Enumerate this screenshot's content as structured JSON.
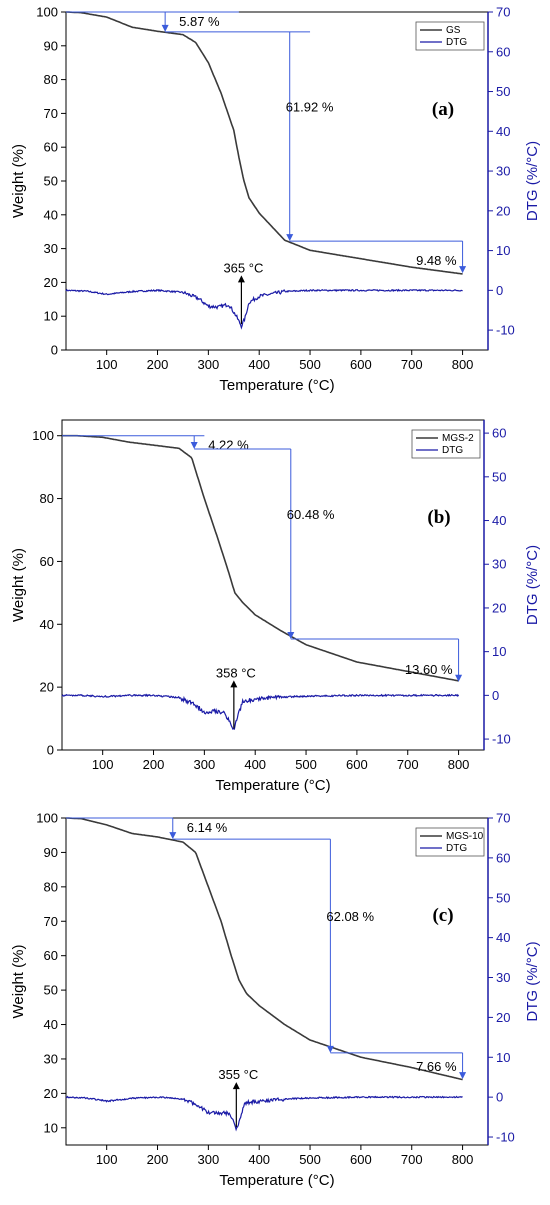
{
  "chart_data": [
    {
      "type": "line",
      "panel_label": "(a)",
      "xlabel": "Temperature (°C)",
      "ylabel": "Weight (%)",
      "y2label": "DTG (%/°C)",
      "xlim": [
        20,
        850
      ],
      "ylim": [
        0,
        100
      ],
      "y2lim": [
        -15,
        70
      ],
      "xticks": [
        100,
        200,
        300,
        400,
        500,
        600,
        700,
        800
      ],
      "yticks": [
        0,
        10,
        20,
        30,
        40,
        50,
        60,
        70,
        80,
        90,
        100
      ],
      "y2ticks": [
        -10,
        0,
        10,
        20,
        30,
        40,
        50,
        60,
        70
      ],
      "legend": [
        "GS",
        "DTG"
      ],
      "colors": {
        "weight": "#3a3a3a",
        "dtg": "#1a1aa6",
        "steps": "#3b5bdb"
      },
      "series": [
        {
          "name": "GS",
          "axis": "left",
          "x": [
            20,
            50,
            100,
            150,
            200,
            250,
            275,
            300,
            325,
            350,
            360,
            370,
            380,
            400,
            450,
            500,
            600,
            700,
            800
          ],
          "values": [
            100,
            99.8,
            98.5,
            95.5,
            94.3,
            93.3,
            91,
            85,
            76,
            65,
            57,
            50,
            45,
            40.5,
            32.5,
            29.5,
            27,
            24.5,
            22.5
          ]
        },
        {
          "name": "DTG",
          "axis": "right",
          "x": [
            20,
            60,
            100,
            150,
            200,
            250,
            280,
            300,
            320,
            340,
            355,
            365,
            372,
            380,
            400,
            450,
            500,
            600,
            700,
            800
          ],
          "values": [
            0,
            -0.2,
            -1,
            -0.3,
            0,
            -0.5,
            -2,
            -4,
            -4.2,
            -3.5,
            -6.5,
            -9,
            -7,
            -3,
            -1.5,
            -0.3,
            0,
            0,
            0,
            0
          ]
        }
      ],
      "steps": [
        {
          "label": "5.87 %",
          "x": 215,
          "y_top": 100,
          "y_bottom": 94.13,
          "line_end": 360
        },
        {
          "label": "61.92 %",
          "x": 460,
          "y_top": 94.13,
          "y_bottom": 32.21,
          "line_end": 500
        },
        {
          "label": "9.48 %",
          "x": 800,
          "y_top": 32.21,
          "y_bottom": 22.73,
          "line_end": 800
        }
      ],
      "peak": {
        "label": "365 °C",
        "x": 365
      }
    },
    {
      "type": "line",
      "panel_label": "(b)",
      "xlabel": "Temperature (°C)",
      "ylabel": "Weight (%)",
      "y2label": "DTG (%/°C)",
      "xlim": [
        20,
        850
      ],
      "ylim": [
        0,
        105
      ],
      "y2lim": [
        -12.5,
        63
      ],
      "xticks": [
        100,
        200,
        300,
        400,
        500,
        600,
        700,
        800
      ],
      "yticks": [
        0,
        20,
        40,
        60,
        80,
        100
      ],
      "y2ticks": [
        -10,
        0,
        10,
        20,
        30,
        40,
        50,
        60
      ],
      "legend": [
        "MGS-2",
        "DTG"
      ],
      "colors": {
        "weight": "#3a3a3a",
        "dtg": "#1a1aa6",
        "steps": "#3b5bdb"
      },
      "series": [
        {
          "name": "MGS-2",
          "axis": "left",
          "x": [
            20,
            50,
            100,
            150,
            200,
            250,
            275,
            300,
            325,
            345,
            360,
            375,
            400,
            450,
            500,
            600,
            700,
            800
          ],
          "values": [
            100,
            100,
            99.5,
            98,
            97,
            96,
            93,
            80,
            68,
            58,
            50,
            47,
            43,
            38,
            33.5,
            28,
            25,
            22
          ]
        },
        {
          "name": "DTG",
          "axis": "right",
          "x": [
            20,
            60,
            100,
            150,
            200,
            250,
            280,
            300,
            320,
            340,
            352,
            358,
            365,
            375,
            400,
            450,
            500,
            600,
            700,
            800
          ],
          "values": [
            0,
            0,
            -0.3,
            0,
            0,
            -0.5,
            -2,
            -3.8,
            -3.5,
            -4,
            -6.5,
            -8,
            -5,
            -1.5,
            -0.8,
            -0.4,
            -0.2,
            0,
            0,
            0
          ]
        }
      ],
      "steps": [
        {
          "label": "4.22 %",
          "x": 280,
          "y_top": 100,
          "y_bottom": 95.78,
          "line_end": 300
        },
        {
          "label": "60.48 %",
          "x": 470,
          "y_top": 95.78,
          "y_bottom": 35.3,
          "line_end": 470
        },
        {
          "label": "13.60 %",
          "x": 800,
          "y_top": 35.3,
          "y_bottom": 21.7,
          "line_end": 800
        }
      ],
      "peak": {
        "label": "358 °C",
        "x": 358
      }
    },
    {
      "type": "line",
      "panel_label": "(c)",
      "xlabel": "Temperature (°C)",
      "ylabel": "Weight (%)",
      "y2label": "DTG (%/°C)",
      "xlim": [
        20,
        850
      ],
      "ylim": [
        5,
        100
      ],
      "y2lim": [
        -12,
        70
      ],
      "xticks": [
        100,
        200,
        300,
        400,
        500,
        600,
        700,
        800
      ],
      "yticks": [
        10,
        20,
        30,
        40,
        50,
        60,
        70,
        80,
        90,
        100
      ],
      "y2ticks": [
        -10,
        0,
        10,
        20,
        30,
        40,
        50,
        60,
        70
      ],
      "legend": [
        "MGS-10",
        "DTG"
      ],
      "colors": {
        "weight": "#3a3a3a",
        "dtg": "#1a1aa6",
        "steps": "#3b5bdb"
      },
      "series": [
        {
          "name": "MGS-10",
          "axis": "left",
          "x": [
            20,
            50,
            100,
            150,
            200,
            250,
            275,
            300,
            325,
            345,
            360,
            375,
            400,
            450,
            500,
            600,
            700,
            800
          ],
          "values": [
            100,
            99.8,
            98,
            95.5,
            94.5,
            93,
            90,
            80,
            70,
            60,
            53,
            49,
            45.5,
            40,
            35.5,
            30.5,
            27.5,
            24
          ]
        },
        {
          "name": "DTG",
          "axis": "right",
          "x": [
            20,
            60,
            100,
            150,
            200,
            250,
            280,
            300,
            320,
            340,
            350,
            355,
            362,
            372,
            400,
            450,
            500,
            600,
            700,
            800
          ],
          "values": [
            0,
            -0.2,
            -1,
            -0.3,
            0,
            -0.5,
            -2,
            -4,
            -4,
            -4,
            -6,
            -8,
            -5.5,
            -1.5,
            -1,
            -0.5,
            -0.2,
            0,
            0,
            0
          ]
        }
      ],
      "steps": [
        {
          "label": "6.14 %",
          "x": 230,
          "y_top": 100,
          "y_bottom": 93.86,
          "line_end": 230
        },
        {
          "label": "62.08 %",
          "x": 540,
          "y_top": 93.86,
          "y_bottom": 31.78,
          "line_end": 540
        },
        {
          "label": "7.66 %",
          "x": 800,
          "y_top": 31.78,
          "y_bottom": 24.12,
          "line_end": 800
        }
      ],
      "peak": {
        "label": "355 °C",
        "x": 355
      }
    }
  ]
}
